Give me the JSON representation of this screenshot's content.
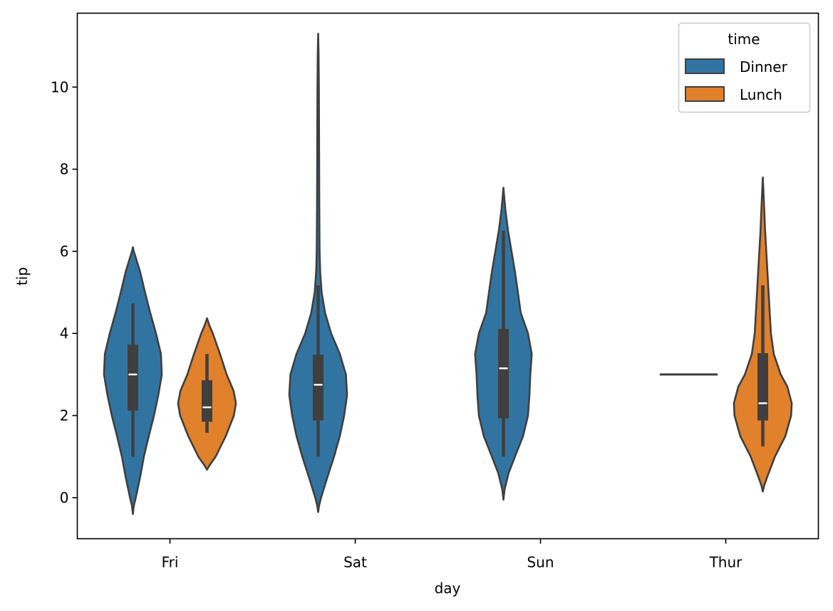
{
  "chart_data": {
    "type": "violin",
    "title": "",
    "xlabel": "day",
    "ylabel": "tip",
    "ylim": [
      -1.0,
      11.8
    ],
    "yticks": [
      0,
      2,
      4,
      6,
      8,
      10
    ],
    "ytick_labels": [
      "0",
      "2",
      "4",
      "6",
      "8",
      "10"
    ],
    "categories": [
      "Fri",
      "Sat",
      "Sun",
      "Thur"
    ],
    "grid": false,
    "legend": {
      "title": "time",
      "position": "top-right",
      "entries": [
        {
          "label": "Dinner",
          "color": "#3274a1"
        },
        {
          "label": "Lunch",
          "color": "#e1812c"
        }
      ]
    },
    "edge_color": "#3f3f3f",
    "series": [
      {
        "name": "Dinner",
        "color": "#3274a1",
        "violins": [
          {
            "category": "Fri",
            "box": {
              "whisker_low": 1.0,
              "q1": 2.12,
              "median": 3.0,
              "q3": 3.73,
              "whisker_high": 4.73
            },
            "profile": [
              [
                -0.4,
                0
              ],
              [
                -0.2,
                0.03
              ],
              [
                0.0,
                0.1
              ],
              [
                0.5,
                0.25
              ],
              [
                1.0,
                0.38
              ],
              [
                1.5,
                0.55
              ],
              [
                2.0,
                0.73
              ],
              [
                2.5,
                0.88
              ],
              [
                3.0,
                1.0
              ],
              [
                3.5,
                0.97
              ],
              [
                4.0,
                0.8
              ],
              [
                4.5,
                0.6
              ],
              [
                5.0,
                0.42
              ],
              [
                5.5,
                0.25
              ],
              [
                5.8,
                0.12
              ],
              [
                6.0,
                0.03
              ],
              [
                6.1,
                0
              ]
            ]
          },
          {
            "category": "Sat",
            "box": {
              "whisker_low": 1.0,
              "q1": 1.88,
              "median": 2.75,
              "q3": 3.48,
              "whisker_high": 5.17
            },
            "profile": [
              [
                -0.35,
                0
              ],
              [
                -0.2,
                0.03
              ],
              [
                0.0,
                0.1
              ],
              [
                0.5,
                0.32
              ],
              [
                1.0,
                0.55
              ],
              [
                1.5,
                0.75
              ],
              [
                2.0,
                0.9
              ],
              [
                2.5,
                1.0
              ],
              [
                3.0,
                0.96
              ],
              [
                3.5,
                0.75
              ],
              [
                4.0,
                0.45
              ],
              [
                4.5,
                0.24
              ],
              [
                5.0,
                0.12
              ],
              [
                5.5,
                0.07
              ],
              [
                6.0,
                0.05
              ],
              [
                7.0,
                0.04
              ],
              [
                8.0,
                0.035
              ],
              [
                9.0,
                0.03
              ],
              [
                10.0,
                0.025
              ],
              [
                10.8,
                0.015
              ],
              [
                11.3,
                0
              ]
            ]
          },
          {
            "category": "Sun",
            "box": {
              "whisker_low": 1.0,
              "q1": 1.93,
              "median": 3.15,
              "q3": 4.11,
              "whisker_high": 6.5
            },
            "profile": [
              [
                -0.05,
                0
              ],
              [
                0.2,
                0.04
              ],
              [
                0.6,
                0.18
              ],
              [
                1.0,
                0.4
              ],
              [
                1.5,
                0.68
              ],
              [
                2.0,
                0.85
              ],
              [
                2.5,
                0.9
              ],
              [
                3.0,
                0.93
              ],
              [
                3.5,
                0.98
              ],
              [
                4.0,
                0.85
              ],
              [
                4.5,
                0.6
              ],
              [
                5.0,
                0.5
              ],
              [
                5.5,
                0.4
              ],
              [
                6.0,
                0.28
              ],
              [
                6.5,
                0.16
              ],
              [
                7.0,
                0.07
              ],
              [
                7.3,
                0.03
              ],
              [
                7.55,
                0
              ]
            ]
          },
          {
            "category": "Thur",
            "box": {
              "whisker_low": 3.0,
              "q1": 3.0,
              "median": 3.0,
              "q3": 3.0,
              "whisker_high": 3.0
            },
            "single_value": 3.0,
            "profile": []
          }
        ]
      },
      {
        "name": "Lunch",
        "color": "#e1812c",
        "violins": [
          {
            "category": "Fri",
            "box": {
              "whisker_low": 1.58,
              "q1": 1.85,
              "median": 2.2,
              "q3": 2.86,
              "whisker_high": 3.5
            },
            "profile": [
              [
                0.68,
                0
              ],
              [
                0.8,
                0.1
              ],
              [
                1.0,
                0.3
              ],
              [
                1.5,
                0.65
              ],
              [
                2.0,
                0.93
              ],
              [
                2.3,
                1.0
              ],
              [
                2.6,
                0.92
              ],
              [
                3.0,
                0.68
              ],
              [
                3.5,
                0.45
              ],
              [
                4.0,
                0.2
              ],
              [
                4.2,
                0.08
              ],
              [
                4.37,
                0
              ]
            ]
          },
          {
            "category": "Sat",
            "box": null,
            "profile": []
          },
          {
            "category": "Sun",
            "box": null,
            "profile": []
          },
          {
            "category": "Thur",
            "box": {
              "whisker_low": 1.25,
              "q1": 1.88,
              "median": 2.3,
              "q3": 3.52,
              "whisker_high": 5.17
            },
            "profile": [
              [
                0.15,
                0
              ],
              [
                0.3,
                0.05
              ],
              [
                0.5,
                0.15
              ],
              [
                1.0,
                0.42
              ],
              [
                1.5,
                0.78
              ],
              [
                2.0,
                0.98
              ],
              [
                2.3,
                1.0
              ],
              [
                2.7,
                0.85
              ],
              [
                3.0,
                0.62
              ],
              [
                3.5,
                0.38
              ],
              [
                4.0,
                0.28
              ],
              [
                4.5,
                0.24
              ],
              [
                5.0,
                0.2
              ],
              [
                5.5,
                0.16
              ],
              [
                6.0,
                0.12
              ],
              [
                6.5,
                0.08
              ],
              [
                7.0,
                0.05
              ],
              [
                7.5,
                0.02
              ],
              [
                7.8,
                0
              ]
            ]
          }
        ]
      }
    ]
  }
}
